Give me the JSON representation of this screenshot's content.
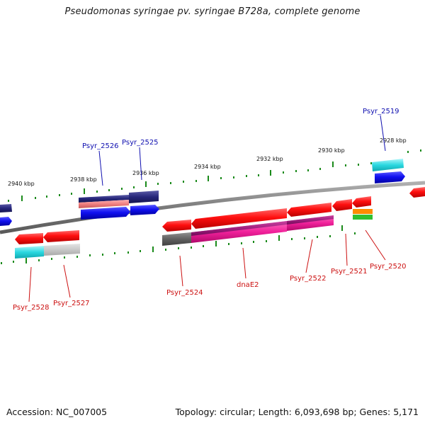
{
  "header": {
    "title": "Pseudomonas syringae pv. syringae B728a, complete genome"
  },
  "footer": {
    "accession": "Accession: NC_007005",
    "summary": "Topology: circular; Length: 6,093,698 bp; Genes: 5,171"
  },
  "ruler_labels": [
    "2940 kbp",
    "2938 kbp",
    "2936 kbp",
    "2934 kbp",
    "2932 kbp",
    "2930 kbp",
    "2928 kbp"
  ],
  "genes_top": [
    "Psyr_2526",
    "Psyr_2525",
    "Psyr_2519"
  ],
  "genes_bottom": [
    "Psyr_2528",
    "Psyr_2527",
    "Psyr_2524",
    "dnaE2",
    "Psyr_2522",
    "Psyr_2521",
    "Psyr_2520"
  ],
  "colors": {
    "backbone": "#808080",
    "tick": "#1a8a1a",
    "label_blue": "#1010b0",
    "label_red": "#cc1010",
    "gene_red": "#ff1a1a",
    "gene_blue": "#1414f0",
    "navy": "#23237a",
    "cyan": "#2ad8e0",
    "magenta": "#f0209a",
    "grey": "#606060",
    "light_grey": "#c8c8c8",
    "salmon": "#f08080",
    "orange": "#ff8c00",
    "green": "#30c030"
  }
}
